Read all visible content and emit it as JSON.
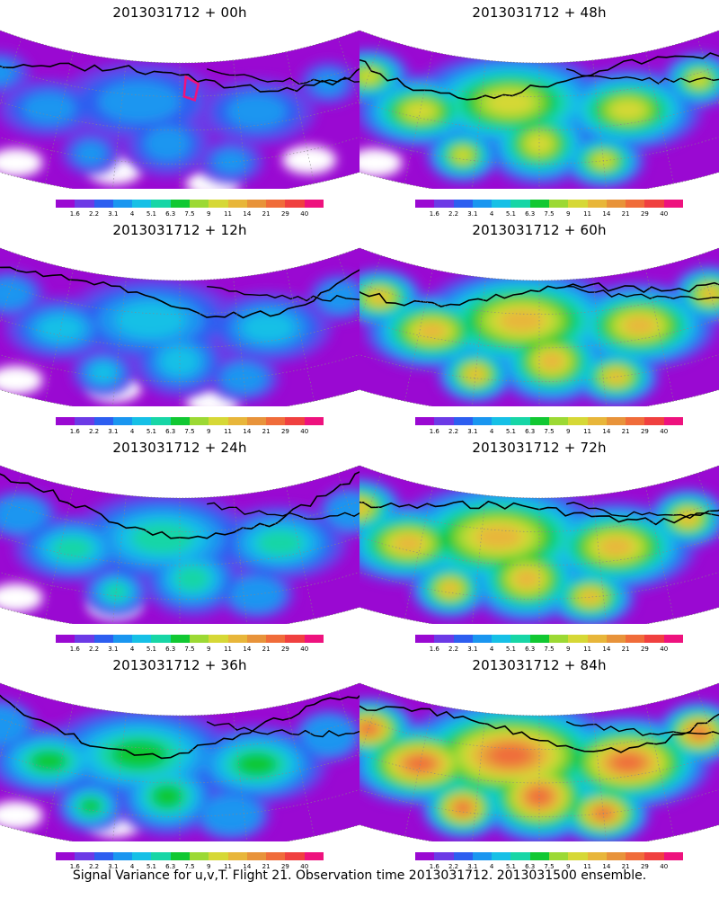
{
  "caption": "Signal Variance for u,v,T. Flight 21. Observation time 2013031712. 2013031500 ensemble.",
  "colorbar": {
    "colors": [
      "#9a09d2",
      "#6c3ae6",
      "#2d5ef0",
      "#1a96f0",
      "#16c0e6",
      "#17d6a6",
      "#11c832",
      "#9cd934",
      "#d6d836",
      "#e8b63a",
      "#e8933a",
      "#f06c3a",
      "#f04040",
      "#ee127e"
    ],
    "ticks": [
      "1.6",
      "2.2",
      "3.1",
      "4",
      "5.1",
      "6.3",
      "7.5",
      "9",
      "11",
      "14",
      "21",
      "29",
      "40"
    ]
  },
  "panels": [
    {
      "id": "p00",
      "title": "2013031712 + 00h",
      "lead_hours": 0,
      "intensity": 0.25
    },
    {
      "id": "p12",
      "title": "2013031712 + 12h",
      "lead_hours": 12,
      "intensity": 0.38
    },
    {
      "id": "p24",
      "title": "2013031712 + 24h",
      "lead_hours": 24,
      "intensity": 0.48
    },
    {
      "id": "p36",
      "title": "2013031712 + 36h",
      "lead_hours": 36,
      "intensity": 0.58
    },
    {
      "id": "p48",
      "title": "2013031712 + 48h",
      "lead_hours": 48,
      "intensity": 0.7
    },
    {
      "id": "p60",
      "title": "2013031712 + 60h",
      "lead_hours": 60,
      "intensity": 0.78
    },
    {
      "id": "p72",
      "title": "2013031712 + 72h",
      "lead_hours": 72,
      "intensity": 0.86
    },
    {
      "id": "p84",
      "title": "2013031712 + 84h",
      "lead_hours": 84,
      "intensity": 0.96
    }
  ]
}
